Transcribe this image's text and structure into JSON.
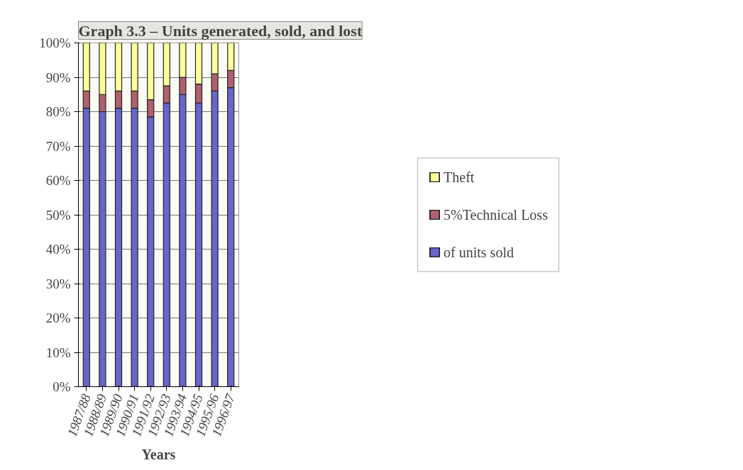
{
  "chart_data": {
    "type": "bar",
    "title": "Graph 3.3 – Units generated, sold, and lost",
    "xlabel": "Years",
    "categories": [
      "1987/88",
      "1988/89",
      "1989/90",
      "1990/91",
      "1991/92",
      "1992/93",
      "1993/94",
      "1994/95",
      "1995/96",
      "1996/97"
    ],
    "stacked": true,
    "series": [
      {
        "name": "of units sold",
        "color": "#6666cc",
        "values": [
          81,
          80,
          81,
          81,
          78.5,
          82.5,
          85,
          82.5,
          86,
          87
        ]
      },
      {
        "name": "5%Technical Loss",
        "color": "#b0606e",
        "values": [
          5,
          5,
          5,
          5,
          5,
          5,
          5,
          5.5,
          5,
          5
        ]
      },
      {
        "name": "Theft",
        "color": "#ffff99",
        "values": [
          14,
          15,
          14,
          14,
          16.5,
          12.5,
          10,
          12,
          9,
          8
        ]
      }
    ],
    "ylim": [
      0,
      100
    ],
    "yticks": [
      {
        "value": 0,
        "label": "0%"
      },
      {
        "value": 10,
        "label": "10%"
      },
      {
        "value": 20,
        "label": "20%"
      },
      {
        "value": 30,
        "label": "30%"
      },
      {
        "value": 40,
        "label": "40%"
      },
      {
        "value": 50,
        "label": "50%"
      },
      {
        "value": 60,
        "label": "60%"
      },
      {
        "value": 70,
        "label": "70%"
      },
      {
        "value": 80,
        "label": "80%"
      },
      {
        "value": 90,
        "label": "90%"
      },
      {
        "value": 100,
        "label": "100%"
      }
    ],
    "grid": "y",
    "legend": "right"
  }
}
